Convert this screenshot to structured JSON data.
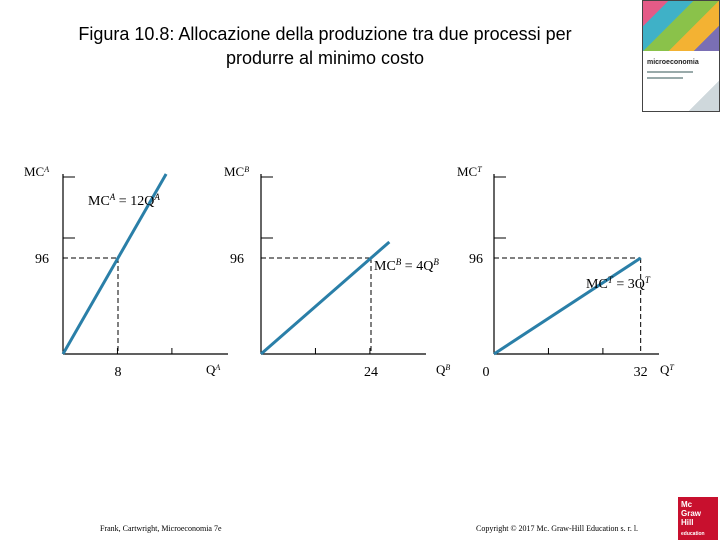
{
  "title_line1": "Figura 10.8: Allocazione della produzione tra due processi per",
  "title_line2": "produrre al minimo costo",
  "footer_left": "Frank, Cartwright, Microeconomia 7e",
  "footer_right": "Copyright © 2017 Mc. Graw-Hill Education s. r. l.",
  "cover_title": "microeconomia",
  "logo": {
    "l1": "Mc",
    "l2": "Graw",
    "l3": "Hill",
    "l4": "education"
  },
  "colors": {
    "curve": "#2a7fa8",
    "axis": "#000000",
    "dashed": "#000000"
  },
  "chart_data": [
    {
      "type": "line",
      "ylabel": "MC^A",
      "xlabel": "Q^A",
      "equation": "MC^A = 12Q^A",
      "slope": 12,
      "xlim": [
        0,
        24
      ],
      "ylim": [
        0,
        180
      ],
      "series": [
        {
          "x": [
            0,
            15
          ],
          "y": [
            0,
            180
          ]
        }
      ],
      "reference": {
        "x": 8,
        "y": 96
      },
      "y_tick_label": "96",
      "x_tick_label": "8"
    },
    {
      "type": "line",
      "ylabel": "MC^B",
      "xlabel": "Q^B",
      "equation": "MC^B = 4Q^B",
      "slope": 4,
      "xlim": [
        0,
        36
      ],
      "ylim": [
        0,
        180
      ],
      "series": [
        {
          "x": [
            0,
            28
          ],
          "y": [
            0,
            112
          ]
        }
      ],
      "reference": {
        "x": 24,
        "y": 96
      },
      "y_tick_label": "96",
      "x_tick_label": "24"
    },
    {
      "type": "line",
      "ylabel": "MC^T",
      "xlabel": "Q^T",
      "equation": "MC^T = 3Q^T",
      "slope": 3,
      "xlim": [
        0,
        36
      ],
      "ylim": [
        0,
        180
      ],
      "series": [
        {
          "x": [
            0,
            32
          ],
          "y": [
            0,
            96
          ]
        }
      ],
      "reference": {
        "x": 32,
        "y": 96
      },
      "y_tick_label": "96",
      "x_tick_label": "32",
      "origin_label": "0"
    }
  ]
}
